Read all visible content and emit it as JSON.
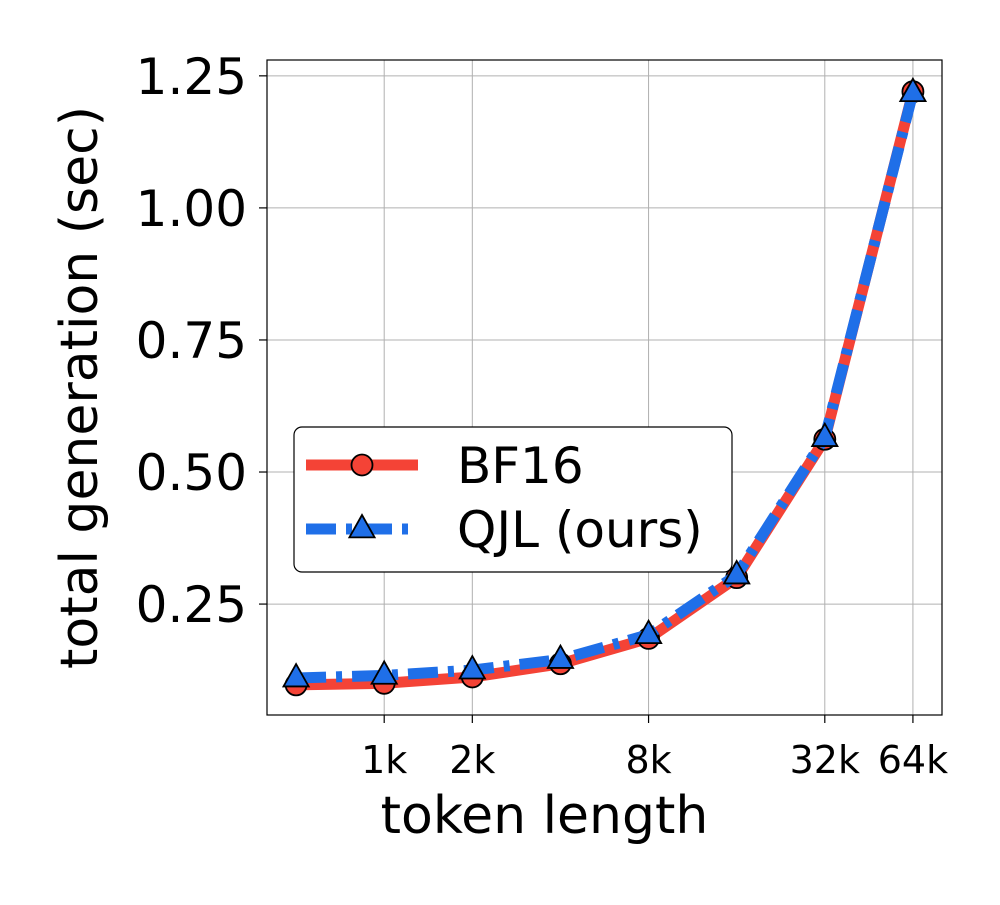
{
  "chart_data": {
    "type": "line",
    "title": "",
    "xlabel": "token length",
    "ylabel": "total generation (sec)",
    "x_scale": "log2",
    "x": [
      512,
      1024,
      2048,
      4096,
      8192,
      16384,
      32768,
      65536
    ],
    "xticks": [
      1024,
      2048,
      8192,
      32768,
      65536
    ],
    "xtick_labels": [
      "1k",
      "2k",
      "8k",
      "32k",
      "64k"
    ],
    "xlim": [
      512,
      65536
    ],
    "yticks": [
      0.25,
      0.5,
      0.75,
      1.0,
      1.25
    ],
    "ytick_labels": [
      "0.25",
      "0.50",
      "0.75",
      "1.00",
      "1.25"
    ],
    "ylim": [
      0.04,
      1.28
    ],
    "grid": true,
    "legend_position": "center-left",
    "series": [
      {
        "name": "BF16",
        "color": "#f44336",
        "marker": "circle",
        "line_style": "solid",
        "values": [
          0.097,
          0.1,
          0.112,
          0.137,
          0.185,
          0.3,
          0.562,
          1.22
        ]
      },
      {
        "name": "QJL (ours)",
        "color": "#1f6fe8",
        "marker": "triangle",
        "line_style": "dash-dot",
        "values": [
          0.11,
          0.115,
          0.125,
          0.145,
          0.192,
          0.305,
          0.565,
          1.218
        ]
      }
    ]
  }
}
